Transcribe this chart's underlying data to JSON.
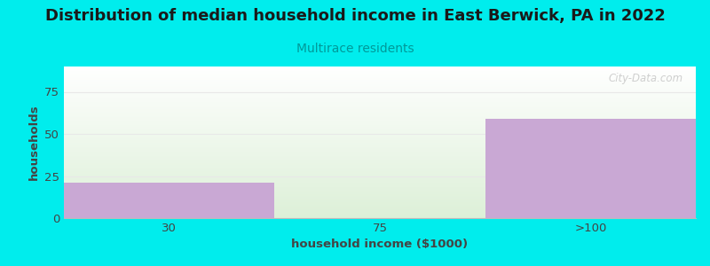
{
  "title": "Distribution of median household income in East Berwick, PA in 2022",
  "subtitle": "Multirace residents",
  "xlabel": "household income ($1000)",
  "ylabel": "households",
  "categories": [
    "30",
    "75",
    ">100"
  ],
  "values": [
    21,
    0,
    59
  ],
  "bar_color": "#c9a8d4",
  "background_color": "#00eded",
  "plot_bg_top": "#ffffff",
  "plot_bg_bottom": "#ddf0d8",
  "title_color": "#1a1a1a",
  "subtitle_color": "#009999",
  "axis_label_color": "#444444",
  "tick_color": "#444444",
  "grid_color": "#e8e8e8",
  "ylim": [
    0,
    90
  ],
  "yticks": [
    0,
    25,
    50,
    75
  ],
  "title_fontsize": 13,
  "subtitle_fontsize": 10,
  "label_fontsize": 9.5,
  "tick_fontsize": 9.5,
  "watermark_text": "City-Data.com",
  "figsize": [
    8.0,
    3.0
  ],
  "dpi": 100
}
